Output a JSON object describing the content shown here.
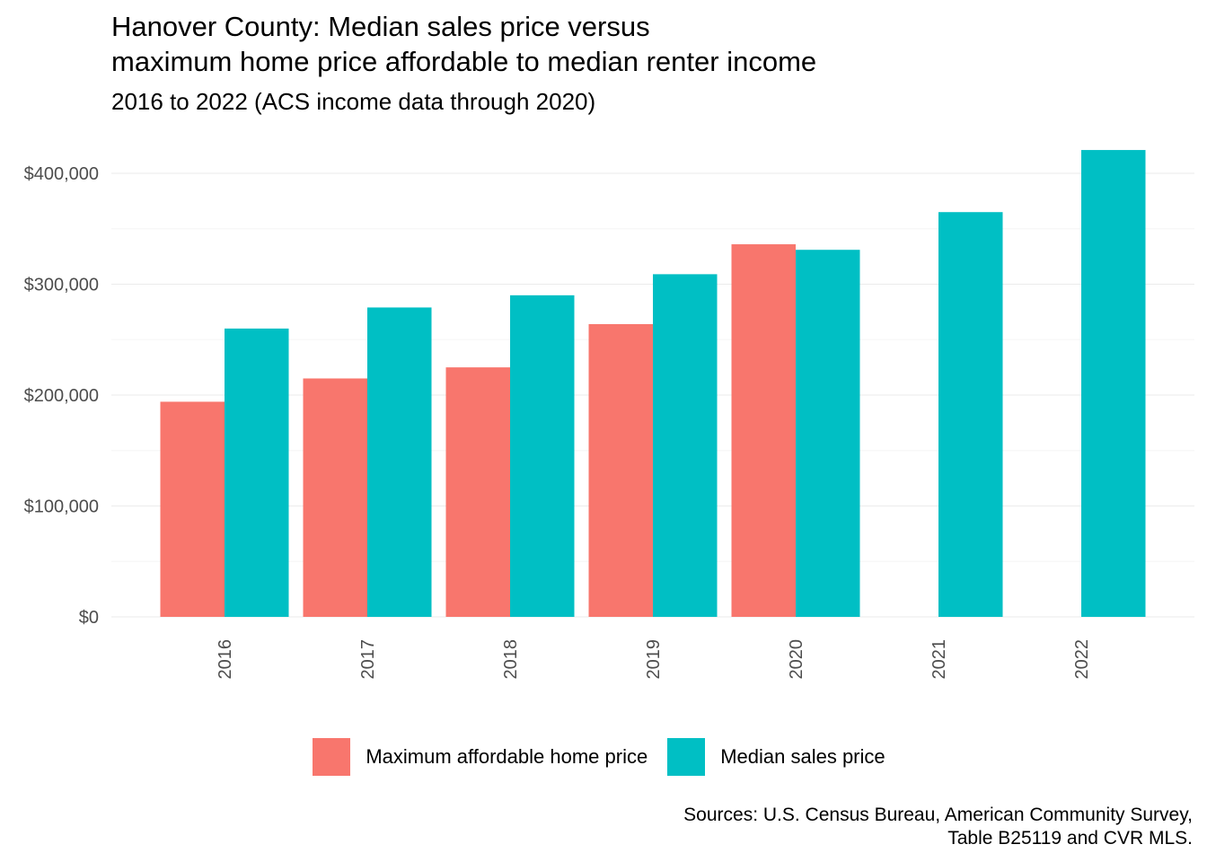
{
  "title_line1": "Hanover County: Median sales price versus",
  "title_line2": "maximum home price affordable to median renter income",
  "subtitle": "2016 to 2022 (ACS income data through 2020)",
  "caption_line1": "Sources: U.S. Census Bureau, American Community Survey,",
  "caption_line2": "Table B25119 and CVR MLS.",
  "colors": {
    "affordable": "#F8766D",
    "sales": "#00BFC4",
    "grid": "#ebebeb",
    "tick": "#4d4d4d"
  },
  "chart_data": {
    "type": "bar",
    "title": "Hanover County: Median sales price versus maximum home price affordable to median renter income",
    "subtitle": "2016 to 2022 (ACS income data through 2020)",
    "xlabel": "",
    "ylabel": "",
    "categories": [
      "2016",
      "2017",
      "2018",
      "2019",
      "2020",
      "2021",
      "2022"
    ],
    "series": [
      {
        "name": "Maximum affordable home price",
        "values": [
          194000,
          215000,
          225000,
          264000,
          336000,
          null,
          null
        ]
      },
      {
        "name": "Median sales price",
        "values": [
          260000,
          279000,
          290000,
          309000,
          331000,
          365000,
          421000
        ]
      }
    ],
    "ylim": [
      0,
      420000
    ],
    "y_ticks": [
      0,
      100000,
      200000,
      300000,
      400000
    ],
    "y_tick_labels": [
      "$0",
      "$100,000",
      "$200,000",
      "$300,000",
      "$400,000"
    ],
    "x_tick_rotation": "vertical",
    "legend_position": "bottom",
    "grid": true
  }
}
